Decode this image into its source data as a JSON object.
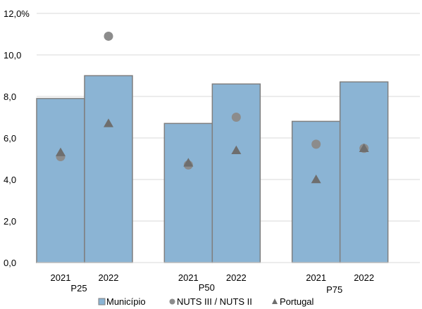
{
  "chart_data": {
    "type": "bar",
    "groups": [
      "P25",
      "P50",
      "P75"
    ],
    "years": [
      "2021",
      "2022"
    ],
    "ylim": [
      0,
      12
    ],
    "yticks": [
      "0,0",
      "2,0",
      "4,0",
      "6,0",
      "8,0",
      "10,0",
      "12,0%"
    ],
    "grid": true,
    "legend_position": "bottom",
    "series": [
      {
        "name": "Município",
        "marker": "bar",
        "color": "#8bb4d4",
        "values": [
          [
            7.9,
            9.0
          ],
          [
            6.7,
            8.6
          ],
          [
            6.8,
            8.7
          ]
        ]
      },
      {
        "name": "NUTS III / NUTS II",
        "marker": "circle",
        "color": "#8c8c8c",
        "values": [
          [
            5.1,
            10.9
          ],
          [
            4.7,
            7.0
          ],
          [
            5.7,
            5.5
          ]
        ]
      },
      {
        "name": "Portugal",
        "marker": "triangle",
        "color": "#6e6e6e",
        "values": [
          [
            5.3,
            6.7
          ],
          [
            4.8,
            5.4
          ],
          [
            4.0,
            5.5
          ]
        ]
      }
    ]
  }
}
